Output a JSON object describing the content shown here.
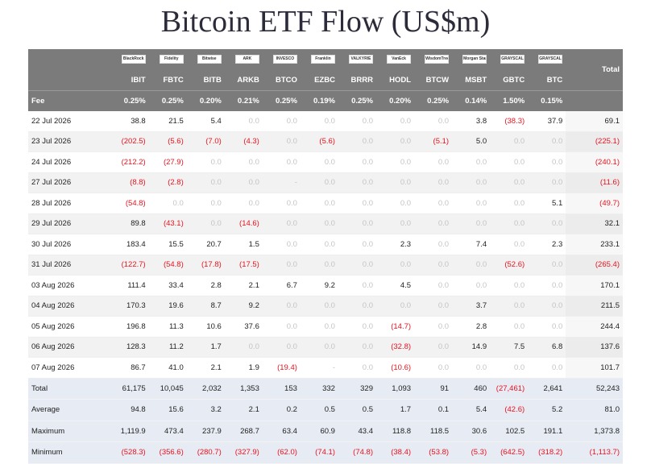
{
  "title": "Bitcoin ETF Flow (US$m)",
  "colors": {
    "header_bg": "#7b7b7b",
    "negative": "#e8141f",
    "zero": "#c4c4c4",
    "footer_bg": "#e6ebf4"
  },
  "header": {
    "logos": [
      "BlackRock",
      "Fidelity",
      "Bitwise",
      "ARK",
      "INVESCO",
      "Franklin",
      "VALKYRIE",
      "VanEck",
      "WisdomTree",
      "Morgan Stanley",
      "GRAYSCALE",
      "GRAYSCALE"
    ],
    "tickers": [
      "IBIT",
      "FBTC",
      "BITB",
      "ARKB",
      "BTCO",
      "EZBC",
      "BRRR",
      "HODL",
      "BTCW",
      "MSBT",
      "GBTC",
      "BTC"
    ],
    "total_label": "Total",
    "fee_label": "Fee",
    "fees": [
      "0.25%",
      "0.25%",
      "0.20%",
      "0.21%",
      "0.25%",
      "0.19%",
      "0.25%",
      "0.20%",
      "0.25%",
      "0.14%",
      "1.50%",
      "0.15%"
    ]
  },
  "rows": [
    {
      "date": "22 Jul 2026",
      "values": [
        "38.8",
        "21.5",
        "5.4",
        "0.0",
        "0.0",
        "0.0",
        "0.0",
        "0.0",
        "0.0",
        "3.8",
        "(38.3)",
        "37.9"
      ],
      "total": "69.1"
    },
    {
      "date": "23 Jul 2026",
      "values": [
        "(202.5)",
        "(5.6)",
        "(7.0)",
        "(4.3)",
        "0.0",
        "(5.6)",
        "0.0",
        "0.0",
        "(5.1)",
        "5.0",
        "0.0",
        "0.0"
      ],
      "total": "(225.1)"
    },
    {
      "date": "24 Jul 2026",
      "values": [
        "(212.2)",
        "(27.9)",
        "0.0",
        "0.0",
        "0.0",
        "0.0",
        "0.0",
        "0.0",
        "0.0",
        "0.0",
        "0.0",
        "0.0"
      ],
      "total": "(240.1)"
    },
    {
      "date": "27 Jul 2026",
      "values": [
        "(8.8)",
        "(2.8)",
        "0.0",
        "0.0",
        "-",
        "0.0",
        "0.0",
        "0.0",
        "0.0",
        "0.0",
        "0.0",
        "0.0"
      ],
      "total": "(11.6)"
    },
    {
      "date": "28 Jul 2026",
      "values": [
        "(54.8)",
        "0.0",
        "0.0",
        "0.0",
        "0.0",
        "0.0",
        "0.0",
        "0.0",
        "0.0",
        "0.0",
        "0.0",
        "5.1"
      ],
      "total": "(49.7)"
    },
    {
      "date": "29 Jul 2026",
      "values": [
        "89.8",
        "(43.1)",
        "0.0",
        "(14.6)",
        "0.0",
        "0.0",
        "0.0",
        "0.0",
        "0.0",
        "0.0",
        "0.0",
        "0.0"
      ],
      "total": "32.1"
    },
    {
      "date": "30 Jul 2026",
      "values": [
        "183.4",
        "15.5",
        "20.7",
        "1.5",
        "0.0",
        "0.0",
        "0.0",
        "2.3",
        "0.0",
        "7.4",
        "0.0",
        "2.3"
      ],
      "total": "233.1"
    },
    {
      "date": "31 Jul 2026",
      "values": [
        "(122.7)",
        "(54.8)",
        "(17.8)",
        "(17.5)",
        "0.0",
        "0.0",
        "0.0",
        "0.0",
        "0.0",
        "0.0",
        "(52.6)",
        "0.0"
      ],
      "total": "(265.4)"
    },
    {
      "date": "03 Aug 2026",
      "values": [
        "111.4",
        "33.4",
        "2.8",
        "2.1",
        "6.7",
        "9.2",
        "0.0",
        "4.5",
        "0.0",
        "0.0",
        "0.0",
        "0.0"
      ],
      "total": "170.1"
    },
    {
      "date": "04 Aug 2026",
      "values": [
        "170.3",
        "19.6",
        "8.7",
        "9.2",
        "0.0",
        "0.0",
        "0.0",
        "0.0",
        "0.0",
        "3.7",
        "0.0",
        "0.0"
      ],
      "total": "211.5"
    },
    {
      "date": "05 Aug 2026",
      "values": [
        "196.8",
        "11.3",
        "10.6",
        "37.6",
        "0.0",
        "0.0",
        "0.0",
        "(14.7)",
        "0.0",
        "2.8",
        "0.0",
        "0.0"
      ],
      "total": "244.4"
    },
    {
      "date": "06 Aug 2026",
      "values": [
        "128.3",
        "11.2",
        "1.7",
        "0.0",
        "0.0",
        "0.0",
        "0.0",
        "(32.8)",
        "0.0",
        "14.9",
        "7.5",
        "6.8"
      ],
      "total": "137.6"
    },
    {
      "date": "07 Aug 2026",
      "values": [
        "86.7",
        "41.0",
        "2.1",
        "1.9",
        "(19.4)",
        "-",
        "0.0",
        "(10.6)",
        "0.0",
        "0.0",
        "0.0",
        "0.0"
      ],
      "total": "101.7"
    }
  ],
  "summary": [
    {
      "label": "Total",
      "values": [
        "61,175",
        "10,045",
        "2,032",
        "1,353",
        "153",
        "332",
        "329",
        "1,093",
        "91",
        "460",
        "(27,461)",
        "2,641"
      ],
      "total": "52,243"
    },
    {
      "label": "Average",
      "values": [
        "94.8",
        "15.6",
        "3.2",
        "2.1",
        "0.2",
        "0.5",
        "0.5",
        "1.7",
        "0.1",
        "5.4",
        "(42.6)",
        "5.2"
      ],
      "total": "81.0"
    },
    {
      "label": "Maximum",
      "values": [
        "1,119.9",
        "473.4",
        "237.9",
        "268.7",
        "63.4",
        "60.9",
        "43.4",
        "118.8",
        "118.5",
        "30.6",
        "102.5",
        "191.1"
      ],
      "total": "1,373.8"
    },
    {
      "label": "Minimum",
      "values": [
        "(528.3)",
        "(356.6)",
        "(280.7)",
        "(327.9)",
        "(62.0)",
        "(74.1)",
        "(74.8)",
        "(38.4)",
        "(53.8)",
        "(5.3)",
        "(642.5)",
        "(318.2)"
      ],
      "total": "(1,113.7)"
    }
  ]
}
